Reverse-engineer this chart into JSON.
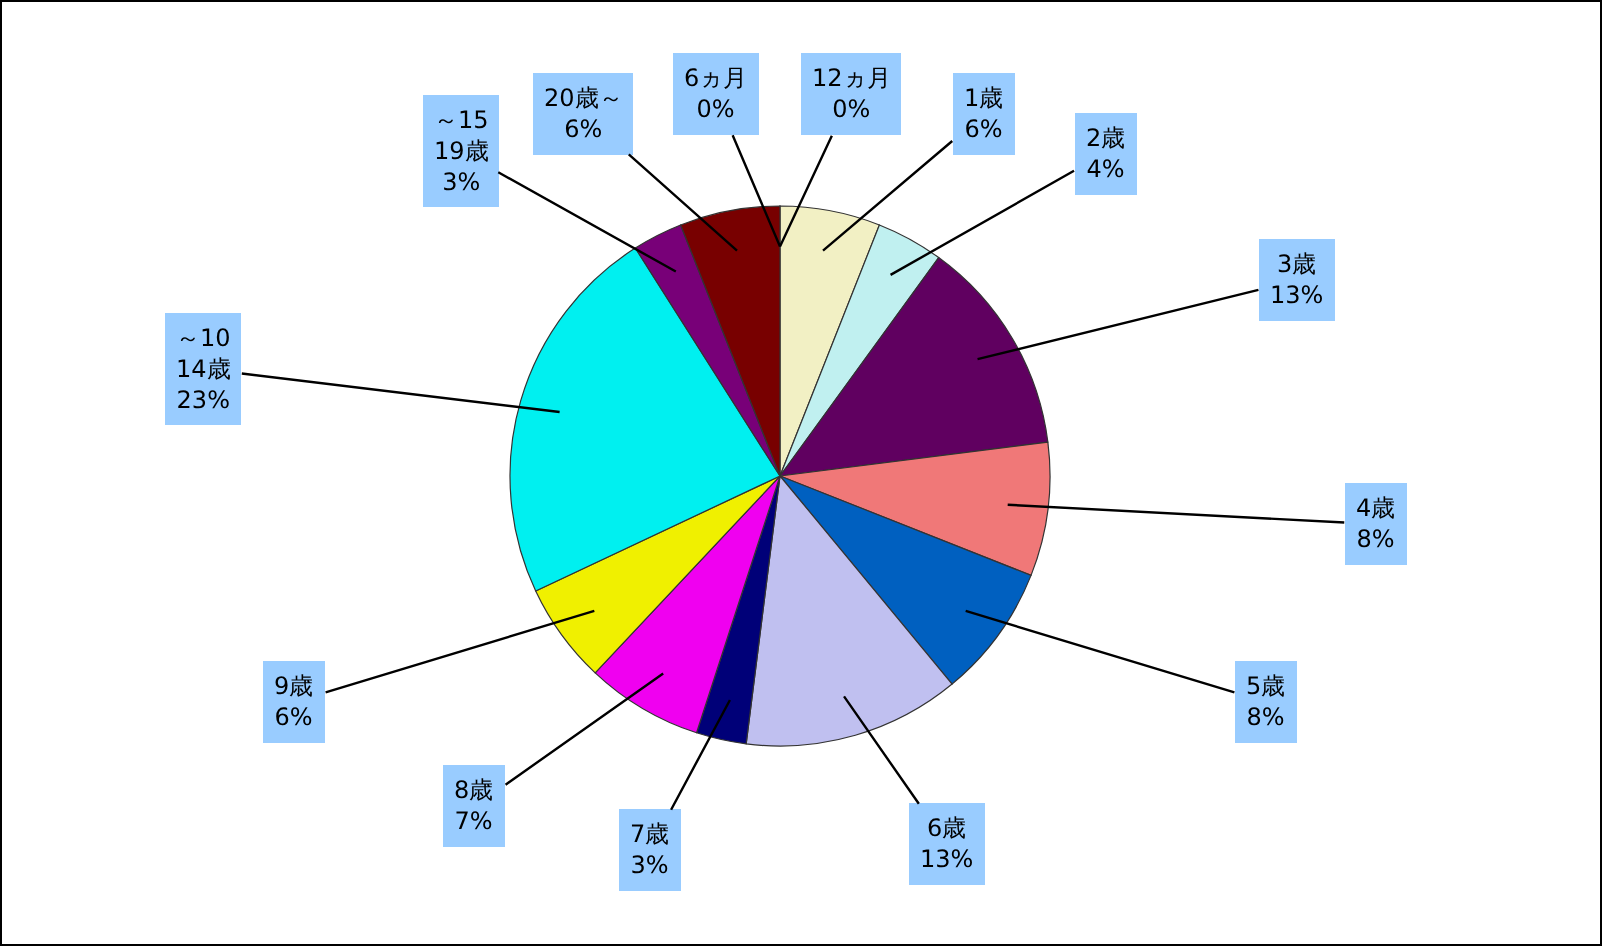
{
  "chart_data": {
    "type": "pie",
    "categories": [
      "6ヵ月",
      "12ヵ月",
      "1歳",
      "2歳",
      "3歳",
      "4歳",
      "5歳",
      "6歳",
      "7歳",
      "8歳",
      "9歳",
      "～10\n14歳",
      "～15\n19歳",
      "20歳～"
    ],
    "values": [
      0,
      0,
      6,
      4,
      13,
      8,
      8,
      13,
      3,
      7,
      6,
      23,
      3,
      6
    ],
    "value_labels": [
      "0%",
      "0%",
      "6%",
      "4%",
      "13%",
      "8%",
      "8%",
      "13%",
      "3%",
      "7%",
      "6%",
      "23%",
      "3%",
      "6%"
    ],
    "colors": [
      "#9999ff",
      "#993366",
      "#f2f0c4",
      "#c0f0f0",
      "#600060",
      "#f07878",
      "#0060c0",
      "#c0c0f0",
      "#000078",
      "#f000f0",
      "#f0f000",
      "#00f0f0",
      "#780078",
      "#780000"
    ]
  }
}
